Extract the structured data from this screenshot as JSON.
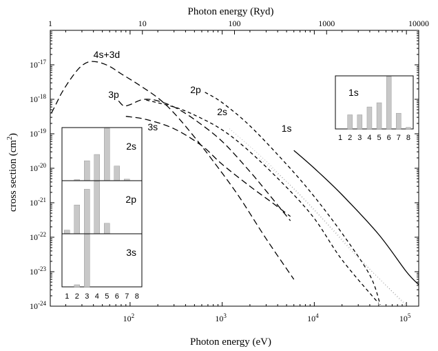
{
  "chart_data": {
    "type": "line",
    "xlabel_bottom": "Photon energy (eV)",
    "xlabel_top": "Photon energy (Ryd)",
    "ylabel": "cross section (cm",
    "ylabel_sup": "2",
    "ylabel_close": ")",
    "xscale": "log",
    "yscale": "log",
    "xlim_ev": [
      13.6,
      136000
    ],
    "xlim_ryd": [
      1,
      10000
    ],
    "ylim": [
      1e-24,
      1e-16
    ],
    "bottom_ticks": [
      {
        "value": 100,
        "base": "10",
        "exp": "2"
      },
      {
        "value": 1000,
        "base": "10",
        "exp": "3"
      },
      {
        "value": 10000,
        "base": "10",
        "exp": "4"
      },
      {
        "value": 100000,
        "base": "10",
        "exp": "5"
      }
    ],
    "top_ticks": [
      {
        "value": 1,
        "label": "1"
      },
      {
        "value": 10,
        "label": "10"
      },
      {
        "value": 100,
        "label": "100"
      },
      {
        "value": 1000,
        "label": "1000"
      },
      {
        "value": 10000,
        "label": "10000"
      }
    ],
    "y_ticks": [
      {
        "value": 1e-17,
        "base": "10",
        "exp": "-17"
      },
      {
        "value": 1e-18,
        "base": "10",
        "exp": "-18"
      },
      {
        "value": 1e-19,
        "base": "10",
        "exp": "-19"
      },
      {
        "value": 1e-20,
        "base": "10",
        "exp": "-20"
      },
      {
        "value": 1e-21,
        "base": "10",
        "exp": "-21"
      },
      {
        "value": 1e-22,
        "base": "10",
        "exp": "-22"
      },
      {
        "value": 1e-23,
        "base": "10",
        "exp": "-23"
      },
      {
        "value": 1e-24,
        "base": "10",
        "exp": "-24"
      }
    ],
    "series": [
      {
        "name": "4s+3d",
        "style": "longdash",
        "label_at": [
          40,
          1.6e-17
        ],
        "points": [
          [
            14,
            4e-19
          ],
          [
            16,
            8e-19
          ],
          [
            18,
            1.5e-18
          ],
          [
            22,
            3.5e-18
          ],
          [
            28,
            8e-18
          ],
          [
            35,
            1.2e-17
          ],
          [
            45,
            1.2e-17
          ],
          [
            60,
            9e-18
          ],
          [
            80,
            5.5e-18
          ],
          [
            120,
            2.8e-18
          ],
          [
            200,
            1.1e-18
          ],
          [
            300,
            4e-19
          ],
          [
            500,
            8e-20
          ],
          [
            800,
            1.6e-20
          ],
          [
            1500,
            1.6e-21
          ],
          [
            3000,
            9e-23
          ],
          [
            6000,
            6e-24
          ]
        ]
      },
      {
        "name": "3p",
        "style": "longdash",
        "label_at": [
          58,
          1.1e-18
        ],
        "points": [
          [
            75,
            9e-19
          ],
          [
            85,
            6.5e-19
          ],
          [
            100,
            7e-19
          ],
          [
            130,
            9.5e-19
          ],
          [
            160,
            1e-18
          ],
          [
            200,
            9e-19
          ],
          [
            300,
            6e-19
          ],
          [
            500,
            2.6e-19
          ],
          [
            1000,
            6e-20
          ],
          [
            2000,
            8e-21
          ],
          [
            3000,
            2.2e-21
          ],
          [
            5500,
            3e-22
          ]
        ]
      },
      {
        "name": "3s",
        "style": "longdash",
        "label_at": [
          155,
          1.25e-19
        ],
        "points": [
          [
            90,
            3.2e-19
          ],
          [
            150,
            2.6e-19
          ],
          [
            300,
            1.4e-19
          ],
          [
            600,
            4.5e-20
          ],
          [
            1000,
            1.3e-20
          ],
          [
            2000,
            3e-21
          ],
          [
            3500,
            1e-21
          ],
          [
            5500,
            4e-22
          ]
        ]
      },
      {
        "name": "2s",
        "style": "dash",
        "label_at": [
          880,
          3.5e-19
        ],
        "points": [
          [
            150,
            9.5e-19
          ],
          [
            300,
            6e-19
          ],
          [
            500,
            3.5e-19
          ],
          [
            1000,
            1.3e-19
          ],
          [
            2000,
            3e-20
          ],
          [
            5000,
            2.8e-21
          ],
          [
            10000,
            3.5e-22
          ],
          [
            20000,
            2.2e-23
          ],
          [
            50000,
            1.2e-24
          ]
        ]
      },
      {
        "name": "2p",
        "style": "dash",
        "label_at": [
          450,
          1.5e-18
        ],
        "points": [
          [
            650,
            1.6e-18
          ],
          [
            1000,
            8e-19
          ],
          [
            2000,
            1.7e-19
          ],
          [
            5000,
            1.3e-20
          ],
          [
            10000,
            1.5e-21
          ],
          [
            20000,
            1.3e-22
          ],
          [
            40000,
            8e-24
          ],
          [
            52000,
            1.1e-24
          ]
        ]
      },
      {
        "name": "1s",
        "style": "solid",
        "label_at": [
          4400,
          1.15e-19
        ],
        "points": [
          [
            6000,
            3.3e-20
          ],
          [
            10000,
            1e-20
          ],
          [
            20000,
            1.7e-21
          ],
          [
            50000,
            1.2e-22
          ],
          [
            100000,
            1e-23
          ],
          [
            136000,
            4.2e-24
          ]
        ]
      },
      {
        "name": "",
        "style": "dot",
        "label_at": null,
        "points": [
          [
            1200,
            1.4e-19
          ],
          [
            3000,
            1.6e-20
          ],
          [
            10000,
            6e-22
          ],
          [
            30000,
            2.5e-23
          ],
          [
            100000,
            1.1e-24
          ]
        ]
      },
      {
        "name": "",
        "style": "dot",
        "label_at": null,
        "points": [
          [
            2500,
            2e-20
          ],
          [
            6000,
            2.6e-21
          ],
          [
            15000,
            2e-22
          ],
          [
            40000,
            1.2e-23
          ],
          [
            100000,
            1e-24
          ]
        ]
      }
    ],
    "inset_1s": {
      "label": "1s",
      "categories": [
        "1",
        "2",
        "3",
        "4",
        "5",
        "6",
        "7",
        "8"
      ],
      "values": [
        0,
        0.27,
        0.27,
        0.42,
        0.5,
        1.0,
        0.3,
        0.03
      ]
    },
    "inset_left": {
      "categories": [
        "1",
        "2",
        "3",
        "4",
        "5",
        "6",
        "7",
        "8"
      ],
      "panels": [
        {
          "label": "2s",
          "values": [
            0,
            0.02,
            0.38,
            0.5,
            1.0,
            0.28,
            0.03,
            0
          ]
        },
        {
          "label": "2p",
          "values": [
            0.07,
            0.55,
            0.85,
            1.0,
            0.2,
            0,
            0,
            0
          ]
        },
        {
          "label": "3s",
          "values": [
            0,
            0.04,
            1.0,
            0,
            0,
            0,
            0,
            0
          ]
        }
      ]
    }
  }
}
